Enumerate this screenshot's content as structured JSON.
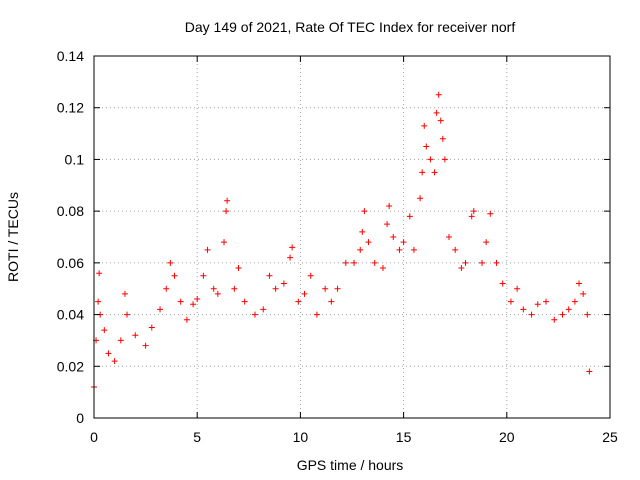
{
  "chart_data": {
    "type": "scatter",
    "title": "Day 149 of 2021, Rate Of TEC Index for receiver norf",
    "xlabel": "GPS time / hours",
    "ylabel": "ROTI / TECUs",
    "xlim": [
      0,
      25
    ],
    "ylim": [
      0,
      0.14
    ],
    "x_ticks": [
      0,
      5,
      10,
      15,
      20,
      25
    ],
    "x_tick_labels": [
      "0",
      "5",
      "10",
      "15",
      "20",
      "25"
    ],
    "y_ticks": [
      0,
      0.02,
      0.04,
      0.06,
      0.08,
      0.1,
      0.12,
      0.14
    ],
    "y_tick_labels": [
      "0",
      "0.02",
      "0.04",
      "0.06",
      "0.08",
      "0.1",
      "0.12",
      "0.14"
    ],
    "grid": true,
    "marker": "plus",
    "color": "#ff0000",
    "series": [
      {
        "points": [
          [
            0.0,
            0.012
          ],
          [
            0.1,
            0.03
          ],
          [
            0.2,
            0.045
          ],
          [
            0.25,
            0.056
          ],
          [
            0.3,
            0.04
          ],
          [
            0.5,
            0.034
          ],
          [
            0.7,
            0.025
          ],
          [
            1.0,
            0.022
          ],
          [
            1.3,
            0.03
          ],
          [
            1.5,
            0.048
          ],
          [
            1.6,
            0.04
          ],
          [
            2.0,
            0.032
          ],
          [
            2.5,
            0.028
          ],
          [
            2.8,
            0.035
          ],
          [
            3.2,
            0.042
          ],
          [
            3.5,
            0.05
          ],
          [
            3.7,
            0.06
          ],
          [
            3.9,
            0.055
          ],
          [
            4.2,
            0.045
          ],
          [
            4.5,
            0.038
          ],
          [
            4.8,
            0.044
          ],
          [
            5.0,
            0.046
          ],
          [
            5.3,
            0.055
          ],
          [
            5.5,
            0.065
          ],
          [
            5.8,
            0.05
          ],
          [
            6.0,
            0.048
          ],
          [
            6.3,
            0.068
          ],
          [
            6.4,
            0.08
          ],
          [
            6.45,
            0.084
          ],
          [
            6.8,
            0.05
          ],
          [
            7.0,
            0.058
          ],
          [
            7.3,
            0.045
          ],
          [
            7.8,
            0.04
          ],
          [
            8.2,
            0.042
          ],
          [
            8.5,
            0.055
          ],
          [
            8.8,
            0.05
          ],
          [
            9.2,
            0.052
          ],
          [
            9.5,
            0.062
          ],
          [
            9.6,
            0.066
          ],
          [
            9.9,
            0.045
          ],
          [
            10.2,
            0.048
          ],
          [
            10.5,
            0.055
          ],
          [
            10.8,
            0.04
          ],
          [
            11.2,
            0.05
          ],
          [
            11.5,
            0.045
          ],
          [
            11.8,
            0.05
          ],
          [
            12.2,
            0.06
          ],
          [
            12.6,
            0.06
          ],
          [
            12.9,
            0.065
          ],
          [
            13.0,
            0.072
          ],
          [
            13.1,
            0.08
          ],
          [
            13.3,
            0.068
          ],
          [
            13.6,
            0.06
          ],
          [
            14.0,
            0.058
          ],
          [
            14.2,
            0.075
          ],
          [
            14.3,
            0.082
          ],
          [
            14.5,
            0.07
          ],
          [
            14.8,
            0.065
          ],
          [
            15.0,
            0.068
          ],
          [
            15.3,
            0.078
          ],
          [
            15.5,
            0.065
          ],
          [
            15.8,
            0.085
          ],
          [
            15.9,
            0.095
          ],
          [
            16.0,
            0.113
          ],
          [
            16.1,
            0.105
          ],
          [
            16.3,
            0.1
          ],
          [
            16.5,
            0.095
          ],
          [
            16.6,
            0.118
          ],
          [
            16.7,
            0.125
          ],
          [
            16.8,
            0.115
          ],
          [
            16.9,
            0.108
          ],
          [
            17.0,
            0.1
          ],
          [
            17.2,
            0.07
          ],
          [
            17.5,
            0.065
          ],
          [
            17.8,
            0.058
          ],
          [
            18.0,
            0.06
          ],
          [
            18.3,
            0.078
          ],
          [
            18.4,
            0.08
          ],
          [
            18.8,
            0.06
          ],
          [
            19.0,
            0.068
          ],
          [
            19.2,
            0.079
          ],
          [
            19.5,
            0.06
          ],
          [
            19.8,
            0.052
          ],
          [
            20.2,
            0.045
          ],
          [
            20.5,
            0.05
          ],
          [
            20.8,
            0.042
          ],
          [
            21.2,
            0.04
          ],
          [
            21.5,
            0.044
          ],
          [
            21.9,
            0.045
          ],
          [
            22.3,
            0.038
          ],
          [
            22.7,
            0.04
          ],
          [
            23.0,
            0.042
          ],
          [
            23.3,
            0.045
          ],
          [
            23.5,
            0.052
          ],
          [
            23.7,
            0.048
          ],
          [
            23.9,
            0.04
          ],
          [
            24.0,
            0.018
          ]
        ]
      }
    ]
  }
}
